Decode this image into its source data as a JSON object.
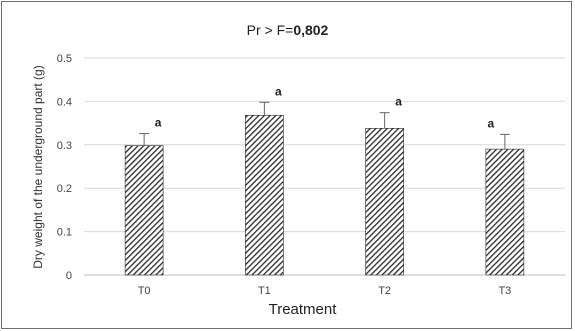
{
  "chart_data": {
    "type": "bar",
    "title_prefix": "Pr > F=",
    "title_value": "0,802",
    "xlabel": "Treatment",
    "ylabel": "Dry weight of the underground part (g)",
    "categories": [
      "T0",
      "T1",
      "T2",
      "T3"
    ],
    "values": [
      0.298,
      0.368,
      0.338,
      0.29
    ],
    "errors": [
      0.028,
      0.03,
      0.036,
      0.034
    ],
    "significance": [
      "a",
      "a",
      "a",
      "a"
    ],
    "ylim": [
      0,
      0.5
    ],
    "yticks": [
      0,
      0.1,
      0.2,
      0.3,
      0.4,
      0.5
    ],
    "ytick_labels": [
      "0",
      "0.1",
      "0.2",
      "0.3",
      "0.4",
      "0.5"
    ],
    "grid": true,
    "bar_pattern": "diagonal-hatch",
    "colors": {
      "bar_stroke": "#2a2a2a",
      "hatch": "#2a2a2a",
      "grid": "#d9d9d9",
      "axis": "#bfbfbf"
    }
  }
}
